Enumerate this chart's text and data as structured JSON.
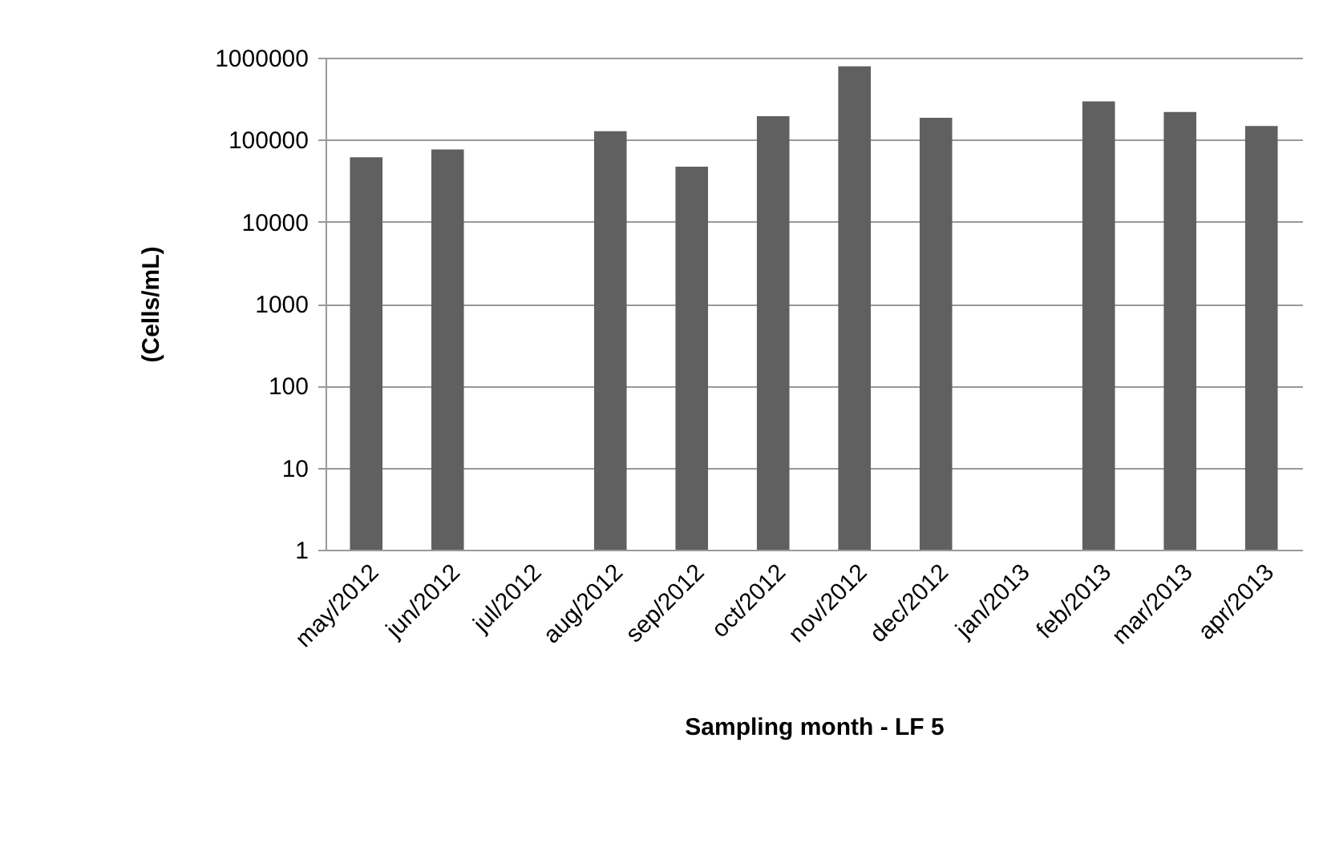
{
  "chart_data": {
    "type": "bar",
    "xlabel": "Sampling month - LF 5",
    "ylabel": "(Cells/mL)",
    "categories": [
      "may/2012",
      "jun/2012",
      "jul/2012",
      "aug/2012",
      "sep/2012",
      "oct/2012",
      "nov/2012",
      "dec/2012",
      "jan/2013",
      "feb/2013",
      "mar/2013",
      "apr/2013"
    ],
    "values": [
      61000,
      76000,
      null,
      127000,
      47000,
      193000,
      787000,
      185000,
      null,
      294000,
      218000,
      147000
    ],
    "color": "#606060",
    "log": "y",
    "ylim": [
      1,
      1000000
    ],
    "yticks": [
      1,
      10,
      100,
      1000,
      10000,
      100000,
      1000000
    ],
    "grid": "y"
  }
}
